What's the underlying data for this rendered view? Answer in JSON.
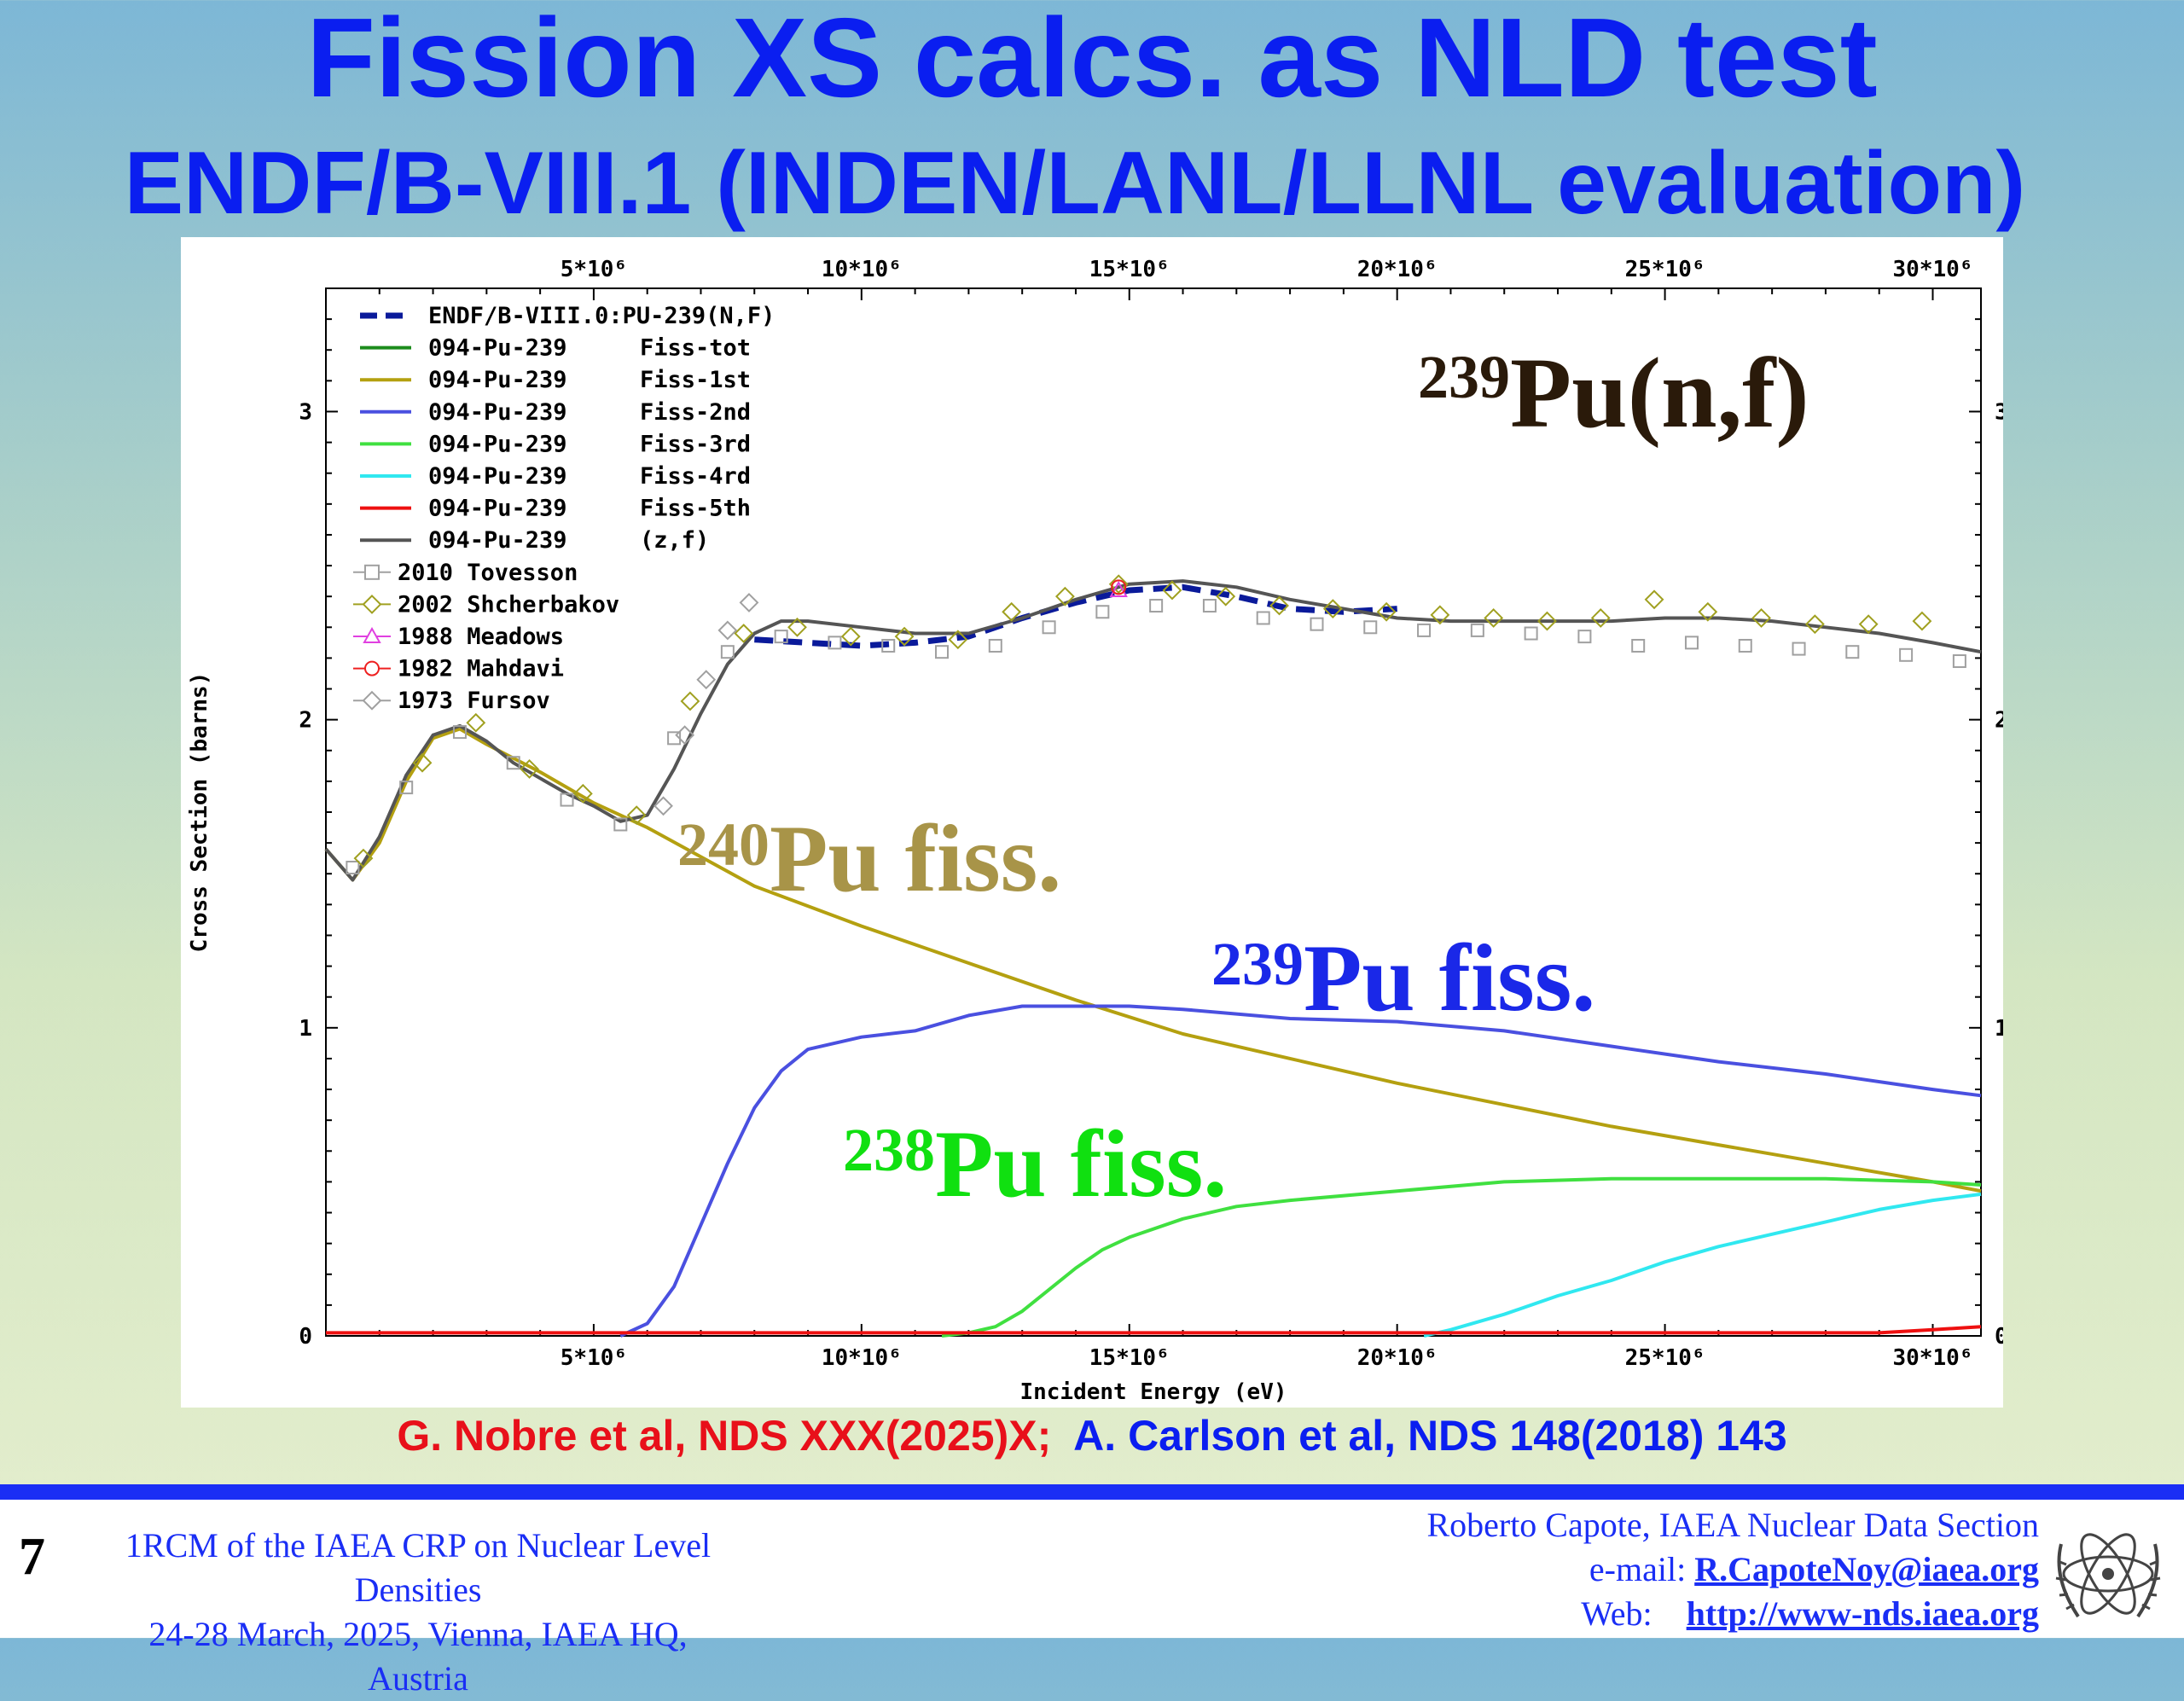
{
  "slide": {
    "title_line1": "Fission XS calcs. as NLD test",
    "title_line2": "ENDF/B-VIII.1 (INDEN/LANL/LLNL evaluation)",
    "reference_a": "G. Nobre et al, NDS XXX(2025)X;",
    "reference_b": "A. Carlson et al, NDS 148(2018) 143",
    "page_number": "7",
    "conference_line1": "1RCM of the IAEA CRP on Nuclear Level Densities",
    "conference_line2": "24-28 March, 2025, Vienna, IAEA HQ, Austria",
    "author_line": "Roberto Capote, IAEA Nuclear Data Section",
    "email_label": "e-mail:",
    "email": "R.CapoteNoy@iaea.org",
    "web_label": "Web:",
    "web": "http://www-nds.iaea.org",
    "colors": {
      "title": "#0a1ef0",
      "reference_red": "#e8101a",
      "accent_bar": "#1a2ef5"
    }
  },
  "chart_data": {
    "type": "line",
    "xlabel": "Incident Energy (eV)",
    "ylabel": "Cross Section (barns)",
    "xlim": [
      0,
      30900000
    ],
    "ylim": [
      0,
      3.4
    ],
    "x_ticks": [
      5000000,
      10000000,
      15000000,
      20000000,
      25000000,
      30000000
    ],
    "x_tick_labels": [
      "5*10⁶",
      "10*10⁶",
      "15*10⁶",
      "20*10⁶",
      "25*10⁶",
      "30*10⁶"
    ],
    "y_ticks": [
      0,
      1,
      2,
      3
    ],
    "y_tick_labels": [
      "0",
      "1",
      "2",
      "3"
    ],
    "legend_position": "top-left",
    "annotations": {
      "reaction_main": "Pu(n,f)",
      "reaction_main_mass": "239",
      "pu240": "Pu fiss.",
      "pu240_mass": "240",
      "pu239": "Pu fiss.",
      "pu239_mass": "239",
      "pu238": "Pu fiss.",
      "pu238_mass": "238"
    },
    "series": [
      {
        "name": "ENDF/B-VIII.0:PU-239(N,F)",
        "label2": "",
        "color": "#0a1a9a",
        "style": "dashed",
        "x": [
          8000000,
          9000000,
          10000000,
          11000000,
          12000000,
          13000000,
          14000000,
          15000000,
          16000000,
          17000000,
          18000000,
          19000000,
          20000000
        ],
        "y": [
          2.26,
          2.25,
          2.24,
          2.25,
          2.27,
          2.33,
          2.38,
          2.42,
          2.43,
          2.4,
          2.36,
          2.35,
          2.36
        ]
      },
      {
        "name": "094-Pu-239",
        "label2": "Fiss-tot",
        "color": "#1c8c1c",
        "style": "solid",
        "x": [],
        "y": []
      },
      {
        "name": "094-Pu-239",
        "label2": "Fiss-1st",
        "color": "#b4a010",
        "style": "solid",
        "x": [
          0,
          500000,
          1000000,
          1500000,
          2000000,
          2500000,
          3000000,
          4000000,
          5000000,
          6000000,
          8000000,
          10000000,
          12000000,
          14000000,
          16000000,
          18000000,
          20000000,
          22000000,
          24000000,
          26000000,
          28000000,
          30000000,
          30900000
        ],
        "y": [
          1.58,
          1.48,
          1.6,
          1.8,
          1.94,
          1.97,
          1.92,
          1.83,
          1.73,
          1.65,
          1.46,
          1.33,
          1.21,
          1.09,
          0.98,
          0.9,
          0.82,
          0.75,
          0.68,
          0.62,
          0.56,
          0.5,
          0.47
        ]
      },
      {
        "name": "094-Pu-239",
        "label2": "Fiss-2nd",
        "color": "#4a50e0",
        "style": "solid",
        "x": [
          5500000,
          6000000,
          6500000,
          7000000,
          7500000,
          8000000,
          8500000,
          9000000,
          10000000,
          11000000,
          12000000,
          13000000,
          14000000,
          15000000,
          16000000,
          18000000,
          20000000,
          22000000,
          24000000,
          26000000,
          28000000,
          30000000,
          30900000
        ],
        "y": [
          0,
          0.04,
          0.16,
          0.36,
          0.56,
          0.74,
          0.86,
          0.93,
          0.97,
          0.99,
          1.04,
          1.07,
          1.07,
          1.07,
          1.06,
          1.03,
          1.02,
          0.99,
          0.94,
          0.89,
          0.85,
          0.8,
          0.78
        ]
      },
      {
        "name": "094-Pu-239",
        "label2": "Fiss-3rd",
        "color": "#40e040",
        "style": "solid",
        "x": [
          11500000,
          12000000,
          12500000,
          13000000,
          13500000,
          14000000,
          14500000,
          15000000,
          16000000,
          17000000,
          18000000,
          20000000,
          22000000,
          24000000,
          26000000,
          28000000,
          30000000,
          30900000
        ],
        "y": [
          0,
          0.01,
          0.03,
          0.08,
          0.15,
          0.22,
          0.28,
          0.32,
          0.38,
          0.42,
          0.44,
          0.47,
          0.5,
          0.51,
          0.51,
          0.51,
          0.5,
          0.49
        ]
      },
      {
        "name": "094-Pu-239",
        "label2": "Fiss-4rd",
        "color": "#30e8f0",
        "style": "solid",
        "x": [
          20500000,
          21000000,
          22000000,
          23000000,
          24000000,
          25000000,
          26000000,
          27000000,
          28000000,
          29000000,
          30000000,
          30900000
        ],
        "y": [
          0,
          0.02,
          0.07,
          0.13,
          0.18,
          0.24,
          0.29,
          0.33,
          0.37,
          0.41,
          0.44,
          0.46
        ]
      },
      {
        "name": "094-Pu-239",
        "label2": "Fiss-5th",
        "color": "#ee1010",
        "style": "solid",
        "x": [
          0,
          10000000,
          20000000,
          29000000,
          30000000,
          30900000
        ],
        "y": [
          0.01,
          0.01,
          0.01,
          0.01,
          0.02,
          0.03
        ]
      },
      {
        "name": "094-Pu-239",
        "label2": "(z,f)",
        "color": "#555555",
        "style": "solid",
        "x": [
          0,
          500000,
          1000000,
          1500000,
          2000000,
          2500000,
          3000000,
          3500000,
          4000000,
          4500000,
          5000000,
          5500000,
          6000000,
          6500000,
          7000000,
          7500000,
          8000000,
          8500000,
          9000000,
          10000000,
          11000000,
          12000000,
          13000000,
          14000000,
          15000000,
          16000000,
          17000000,
          18000000,
          19000000,
          20000000,
          21000000,
          22000000,
          23000000,
          24000000,
          25000000,
          26000000,
          27000000,
          28000000,
          29000000,
          30000000,
          30900000
        ],
        "y": [
          1.58,
          1.48,
          1.62,
          1.82,
          1.95,
          1.98,
          1.93,
          1.86,
          1.81,
          1.76,
          1.72,
          1.67,
          1.69,
          1.84,
          2.02,
          2.18,
          2.28,
          2.32,
          2.32,
          2.3,
          2.28,
          2.28,
          2.33,
          2.39,
          2.44,
          2.45,
          2.43,
          2.39,
          2.36,
          2.33,
          2.32,
          2.32,
          2.32,
          2.32,
          2.33,
          2.33,
          2.32,
          2.3,
          2.28,
          2.25,
          2.22
        ]
      }
    ],
    "experimental": [
      {
        "name": "2010 Tovesson",
        "marker": "square",
        "color": "#a0a0a0",
        "x": [
          500000,
          1500000,
          2500000,
          3500000,
          4500000,
          5500000,
          6500000,
          7500000,
          8500000,
          9500000,
          10500000,
          11500000,
          12500000,
          13500000,
          14500000,
          15500000,
          16500000,
          17500000,
          18500000,
          19500000,
          20500000,
          21500000,
          22500000,
          23500000,
          24500000,
          25500000,
          26500000,
          27500000,
          28500000,
          29500000,
          30500000
        ],
        "y": [
          1.52,
          1.78,
          1.96,
          1.86,
          1.74,
          1.66,
          1.94,
          2.22,
          2.27,
          2.25,
          2.24,
          2.22,
          2.24,
          2.3,
          2.35,
          2.37,
          2.37,
          2.33,
          2.31,
          2.3,
          2.29,
          2.29,
          2.28,
          2.27,
          2.24,
          2.25,
          2.24,
          2.23,
          2.22,
          2.21,
          2.19
        ]
      },
      {
        "name": "2002 Shcherbakov",
        "marker": "diamond",
        "color": "#a0a020",
        "x": [
          700000,
          1800000,
          2800000,
          3800000,
          4800000,
          5800000,
          6800000,
          7800000,
          8800000,
          9800000,
          10800000,
          11800000,
          12800000,
          13800000,
          14800000,
          15800000,
          16800000,
          17800000,
          18800000,
          19800000,
          20800000,
          21800000,
          22800000,
          23800000,
          24800000,
          25800000,
          26800000,
          27800000,
          28800000,
          29800000
        ],
        "y": [
          1.55,
          1.86,
          1.99,
          1.84,
          1.76,
          1.69,
          2.06,
          2.28,
          2.3,
          2.27,
          2.27,
          2.26,
          2.35,
          2.4,
          2.44,
          2.42,
          2.4,
          2.37,
          2.36,
          2.35,
          2.34,
          2.33,
          2.32,
          2.33,
          2.39,
          2.35,
          2.33,
          2.31,
          2.31,
          2.32
        ]
      },
      {
        "name": "1988 Meadows",
        "marker": "triangle",
        "color": "#e040e0",
        "x": [
          14800000
        ],
        "y": [
          2.42
        ]
      },
      {
        "name": "1982 Mahdavi",
        "marker": "circle",
        "color": "#ee2020",
        "x": [
          14800000
        ],
        "y": [
          2.43
        ]
      },
      {
        "name": "1973 Fursov",
        "marker": "diamond",
        "color": "#a0a0a0",
        "x": [
          6300000,
          6700000,
          7100000,
          7500000,
          7900000
        ],
        "y": [
          1.72,
          1.95,
          2.13,
          2.29,
          2.38
        ]
      }
    ]
  }
}
